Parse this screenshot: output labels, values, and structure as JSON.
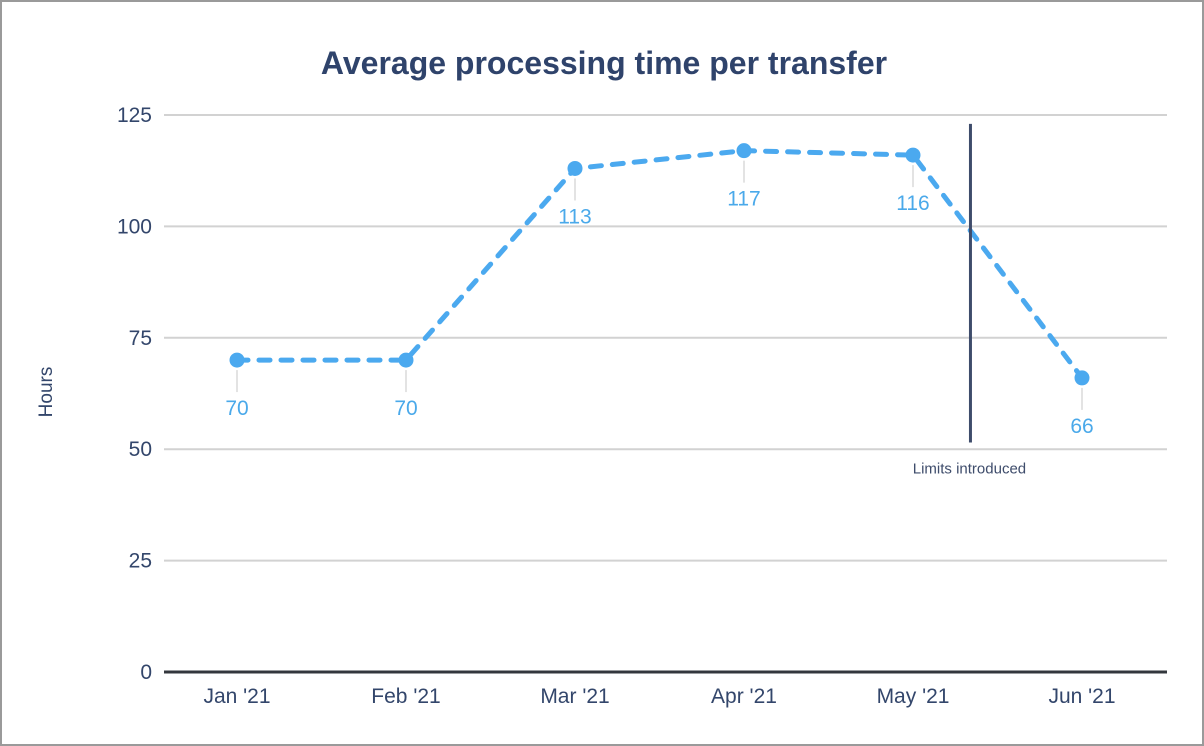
{
  "window": {
    "background": "#ffffff",
    "border_color": "#9a9a9a"
  },
  "chart_data": {
    "type": "line",
    "title": "Average processing time per transfer",
    "xlabel": "",
    "ylabel": "Hours",
    "categories": [
      "Jan '21",
      "Feb '21",
      "Mar '21",
      "Apr '21",
      "May '21",
      "Jun '21"
    ],
    "series": [
      {
        "name": "Average processing time",
        "values": [
          70,
          70,
          113,
          117,
          116,
          66
        ]
      }
    ],
    "data_labels": [
      "70",
      "70",
      "113",
      "117",
      "116",
      "66"
    ],
    "yticks": [
      0,
      25,
      50,
      75,
      100,
      125
    ],
    "ylim": [
      0,
      125
    ],
    "grid": true,
    "legend": "none",
    "line_style": "dashed",
    "annotation": {
      "label": "Limits introduced",
      "x_index": 4.34,
      "y_span_hours": [
        51.5,
        123
      ]
    }
  },
  "colors": {
    "title_text": "#2f436b",
    "axis_text": "#33466b",
    "series_line": "#4ba9ef",
    "data_label_text": "#4aa9ea",
    "label_connector": "#e3e3e3",
    "gridline": "#d2d2d2",
    "zero_axis": "#33373d",
    "annotation": "#3e4c6b"
  }
}
